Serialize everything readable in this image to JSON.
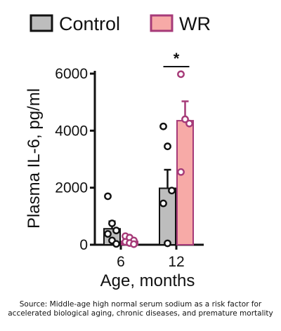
{
  "chart_data": {
    "type": "bar",
    "ylabel": "Plasma IL-6, pg/ml",
    "xlabel": "Age, months",
    "categories": [
      "6",
      "12"
    ],
    "ylim": [
      0,
      6000
    ],
    "yticks": [
      0,
      2000,
      4000,
      6000
    ],
    "legend_position": "top",
    "series": [
      {
        "name": "Control",
        "color": "#bdbdbd",
        "values": [
          560,
          1980
        ],
        "error": [
          260,
          650
        ],
        "points": [
          [
            1700,
            750,
            500,
            380,
            150,
            30
          ],
          [
            4150,
            3450,
            1900,
            1450,
            50
          ]
        ]
      },
      {
        "name": "WR",
        "color": "#f7aaa7",
        "point_color": "#a63a78",
        "values": [
          120,
          4350
        ],
        "error": [
          80,
          680
        ],
        "points": [
          [
            300,
            250,
            150,
            100,
            60,
            20
          ],
          [
            5980,
            4400,
            4250,
            2550
          ]
        ]
      }
    ],
    "annotations": [
      {
        "text": "*",
        "between": "12"
      }
    ]
  },
  "footer": {
    "source_line1": "Source: Middle-age high normal serum sodium as a risk factor for",
    "source_line2": "accelerated biological aging, chronic diseases, and premature mortality"
  }
}
